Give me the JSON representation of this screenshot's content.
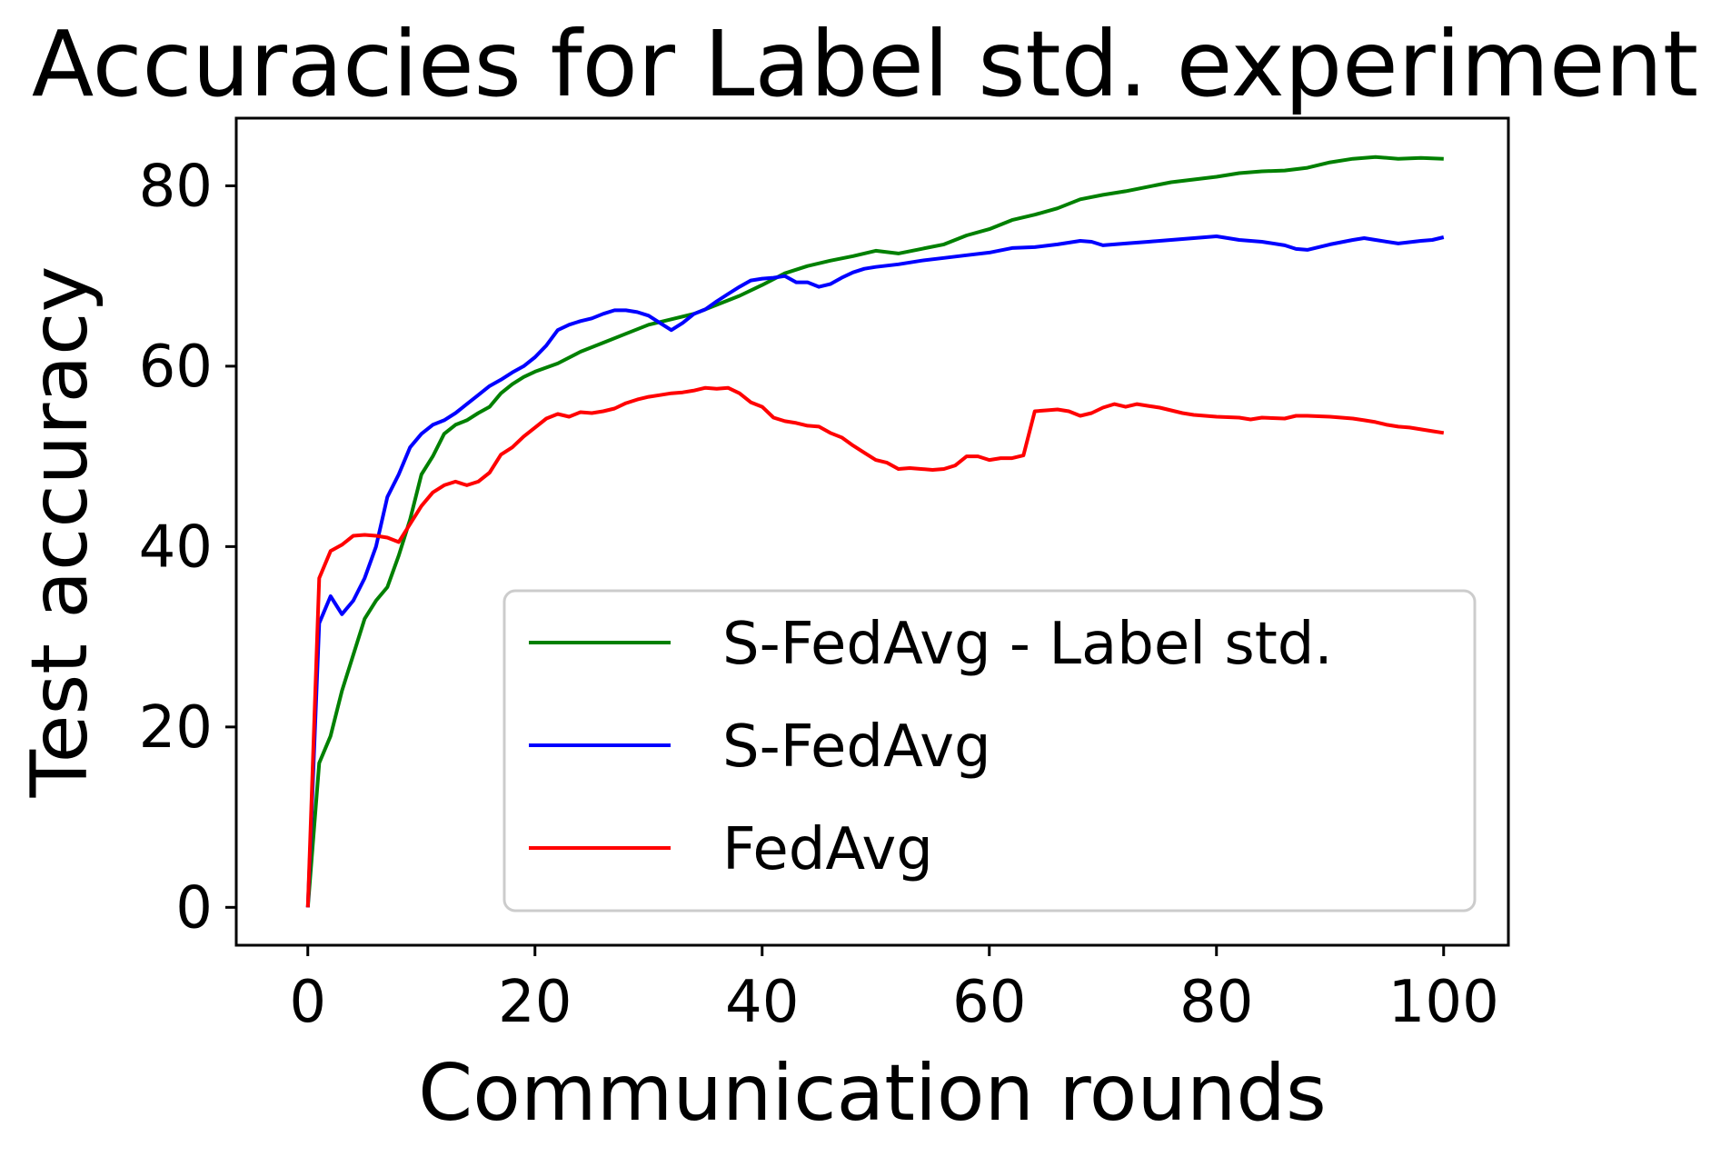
{
  "chart_data": {
    "type": "line",
    "title": "Accuracies for Label std. experiment",
    "xlabel": "Communication rounds",
    "ylabel": "Test accuracy",
    "xlim": [
      -6.3,
      105.7
    ],
    "ylim": [
      -4.2,
      87.5
    ],
    "xticks": [
      0,
      20,
      40,
      60,
      80,
      100
    ],
    "yticks": [
      0,
      20,
      40,
      60,
      80
    ],
    "grid": false,
    "legend_position": "lower-right",
    "series": [
      {
        "name": "S-FedAvg - Label std.",
        "color": "#008000",
        "points": [
          [
            0,
            0
          ],
          [
            1,
            16
          ],
          [
            2,
            19
          ],
          [
            3,
            24
          ],
          [
            4,
            28
          ],
          [
            5,
            32
          ],
          [
            6,
            34
          ],
          [
            7,
            35.5
          ],
          [
            8,
            39
          ],
          [
            9,
            43
          ],
          [
            10,
            48
          ],
          [
            11,
            50
          ],
          [
            12,
            52.5
          ],
          [
            13,
            53.5
          ],
          [
            14,
            54
          ],
          [
            15,
            54.8
          ],
          [
            16,
            55.5
          ],
          [
            17,
            57
          ],
          [
            18,
            58
          ],
          [
            19,
            58.8
          ],
          [
            20,
            59.4
          ],
          [
            22,
            60.3
          ],
          [
            24,
            61.6
          ],
          [
            26,
            62.6
          ],
          [
            28,
            63.6
          ],
          [
            30,
            64.6
          ],
          [
            32,
            65.2
          ],
          [
            34,
            65.8
          ],
          [
            36,
            66.8
          ],
          [
            38,
            67.8
          ],
          [
            40,
            69.0
          ],
          [
            42,
            70.3
          ],
          [
            44,
            71.1
          ],
          [
            46,
            71.7
          ],
          [
            48,
            72.2
          ],
          [
            50,
            72.8
          ],
          [
            52,
            72.5
          ],
          [
            54,
            73.0
          ],
          [
            56,
            73.5
          ],
          [
            58,
            74.5
          ],
          [
            60,
            75.2
          ],
          [
            62,
            76.2
          ],
          [
            64,
            76.8
          ],
          [
            66,
            77.5
          ],
          [
            68,
            78.5
          ],
          [
            70,
            79.0
          ],
          [
            72,
            79.4
          ],
          [
            74,
            79.9
          ],
          [
            76,
            80.4
          ],
          [
            78,
            80.7
          ],
          [
            80,
            81.0
          ],
          [
            82,
            81.4
          ],
          [
            84,
            81.6
          ],
          [
            86,
            81.7
          ],
          [
            88,
            82.0
          ],
          [
            90,
            82.6
          ],
          [
            92,
            83.0
          ],
          [
            94,
            83.2
          ],
          [
            96,
            83.0
          ],
          [
            98,
            83.1
          ],
          [
            100,
            83.0
          ]
        ]
      },
      {
        "name": "S-FedAvg",
        "color": "#0000ff",
        "points": [
          [
            0,
            0
          ],
          [
            1,
            31.5
          ],
          [
            2,
            34.5
          ],
          [
            3,
            32.5
          ],
          [
            4,
            34
          ],
          [
            5,
            36.5
          ],
          [
            6,
            40
          ],
          [
            7,
            45.5
          ],
          [
            8,
            48
          ],
          [
            9,
            51
          ],
          [
            10,
            52.5
          ],
          [
            11,
            53.5
          ],
          [
            12,
            54
          ],
          [
            13,
            54.8
          ],
          [
            14,
            55.8
          ],
          [
            15,
            56.8
          ],
          [
            16,
            57.8
          ],
          [
            17,
            58.5
          ],
          [
            18,
            59.3
          ],
          [
            19,
            60
          ],
          [
            20,
            61
          ],
          [
            21,
            62.3
          ],
          [
            22,
            64
          ],
          [
            23,
            64.6
          ],
          [
            24,
            65
          ],
          [
            25,
            65.3
          ],
          [
            26,
            65.8
          ],
          [
            27,
            66.2
          ],
          [
            28,
            66.2
          ],
          [
            29,
            66
          ],
          [
            30,
            65.6
          ],
          [
            31,
            64.8
          ],
          [
            32,
            64
          ],
          [
            33,
            64.8
          ],
          [
            34,
            65.8
          ],
          [
            35,
            66.3
          ],
          [
            36,
            67.2
          ],
          [
            37,
            68
          ],
          [
            38,
            68.8
          ],
          [
            39,
            69.5
          ],
          [
            40,
            69.7
          ],
          [
            41,
            69.8
          ],
          [
            42,
            70
          ],
          [
            43,
            69.3
          ],
          [
            44,
            69.3
          ],
          [
            45,
            68.8
          ],
          [
            46,
            69.1
          ],
          [
            47,
            69.8
          ],
          [
            48,
            70.4
          ],
          [
            49,
            70.8
          ],
          [
            50,
            71.0
          ],
          [
            52,
            71.3
          ],
          [
            54,
            71.7
          ],
          [
            56,
            72
          ],
          [
            58,
            72.3
          ],
          [
            60,
            72.6
          ],
          [
            62,
            73.1
          ],
          [
            64,
            73.2
          ],
          [
            66,
            73.5
          ],
          [
            68,
            73.9
          ],
          [
            69,
            73.8
          ],
          [
            70,
            73.4
          ],
          [
            72,
            73.6
          ],
          [
            74,
            73.8
          ],
          [
            76,
            74.0
          ],
          [
            78,
            74.2
          ],
          [
            80,
            74.4
          ],
          [
            82,
            74.0
          ],
          [
            84,
            73.8
          ],
          [
            86,
            73.4
          ],
          [
            87,
            73.0
          ],
          [
            88,
            72.9
          ],
          [
            90,
            73.5
          ],
          [
            92,
            74.0
          ],
          [
            93,
            74.2
          ],
          [
            94,
            74.0
          ],
          [
            96,
            73.6
          ],
          [
            98,
            73.9
          ],
          [
            99,
            74.0
          ],
          [
            100,
            74.3
          ]
        ]
      },
      {
        "name": "FedAvg",
        "color": "#ff0000",
        "points": [
          [
            0,
            0
          ],
          [
            1,
            36.5
          ],
          [
            2,
            39.5
          ],
          [
            3,
            40.2
          ],
          [
            4,
            41.2
          ],
          [
            5,
            41.3
          ],
          [
            6,
            41.2
          ],
          [
            7,
            41.0
          ],
          [
            8,
            40.5
          ],
          [
            9,
            42.5
          ],
          [
            10,
            44.5
          ],
          [
            11,
            46
          ],
          [
            12,
            46.8
          ],
          [
            13,
            47.2
          ],
          [
            14,
            46.8
          ],
          [
            15,
            47.2
          ],
          [
            16,
            48.2
          ],
          [
            17,
            50.2
          ],
          [
            18,
            51
          ],
          [
            19,
            52.2
          ],
          [
            20,
            53.2
          ],
          [
            21,
            54.2
          ],
          [
            22,
            54.7
          ],
          [
            23,
            54.4
          ],
          [
            24,
            54.9
          ],
          [
            25,
            54.8
          ],
          [
            26,
            55
          ],
          [
            27,
            55.3
          ],
          [
            28,
            55.9
          ],
          [
            29,
            56.3
          ],
          [
            30,
            56.6
          ],
          [
            31,
            56.8
          ],
          [
            32,
            57
          ],
          [
            33,
            57.1
          ],
          [
            34,
            57.3
          ],
          [
            35,
            57.6
          ],
          [
            36,
            57.5
          ],
          [
            37,
            57.6
          ],
          [
            38,
            57
          ],
          [
            39,
            56
          ],
          [
            40,
            55.5
          ],
          [
            41,
            54.3
          ],
          [
            42,
            53.9
          ],
          [
            43,
            53.7
          ],
          [
            44,
            53.4
          ],
          [
            45,
            53.3
          ],
          [
            46,
            52.6
          ],
          [
            47,
            52.1
          ],
          [
            48,
            51.2
          ],
          [
            49,
            50.4
          ],
          [
            50,
            49.6
          ],
          [
            51,
            49.3
          ],
          [
            52,
            48.6
          ],
          [
            53,
            48.7
          ],
          [
            54,
            48.6
          ],
          [
            55,
            48.5
          ],
          [
            56,
            48.6
          ],
          [
            57,
            49
          ],
          [
            58,
            50
          ],
          [
            59,
            50
          ],
          [
            60,
            49.6
          ],
          [
            61,
            49.8
          ],
          [
            62,
            49.8
          ],
          [
            63,
            50.1
          ],
          [
            64,
            55
          ],
          [
            65,
            55.1
          ],
          [
            66,
            55.2
          ],
          [
            67,
            55
          ],
          [
            68,
            54.5
          ],
          [
            69,
            54.8
          ],
          [
            70,
            55.4
          ],
          [
            71,
            55.8
          ],
          [
            72,
            55.5
          ],
          [
            73,
            55.8
          ],
          [
            74,
            55.6
          ],
          [
            75,
            55.4
          ],
          [
            76,
            55.1
          ],
          [
            77,
            54.8
          ],
          [
            78,
            54.6
          ],
          [
            79,
            54.5
          ],
          [
            80,
            54.4
          ],
          [
            82,
            54.3
          ],
          [
            83,
            54.1
          ],
          [
            84,
            54.3
          ],
          [
            86,
            54.2
          ],
          [
            87,
            54.5
          ],
          [
            88,
            54.5
          ],
          [
            90,
            54.4
          ],
          [
            91,
            54.3
          ],
          [
            92,
            54.2
          ],
          [
            93,
            54.0
          ],
          [
            94,
            53.8
          ],
          [
            95,
            53.5
          ],
          [
            96,
            53.3
          ],
          [
            97,
            53.2
          ],
          [
            98,
            53.0
          ],
          [
            99,
            52.8
          ],
          [
            100,
            52.6
          ]
        ]
      }
    ]
  }
}
